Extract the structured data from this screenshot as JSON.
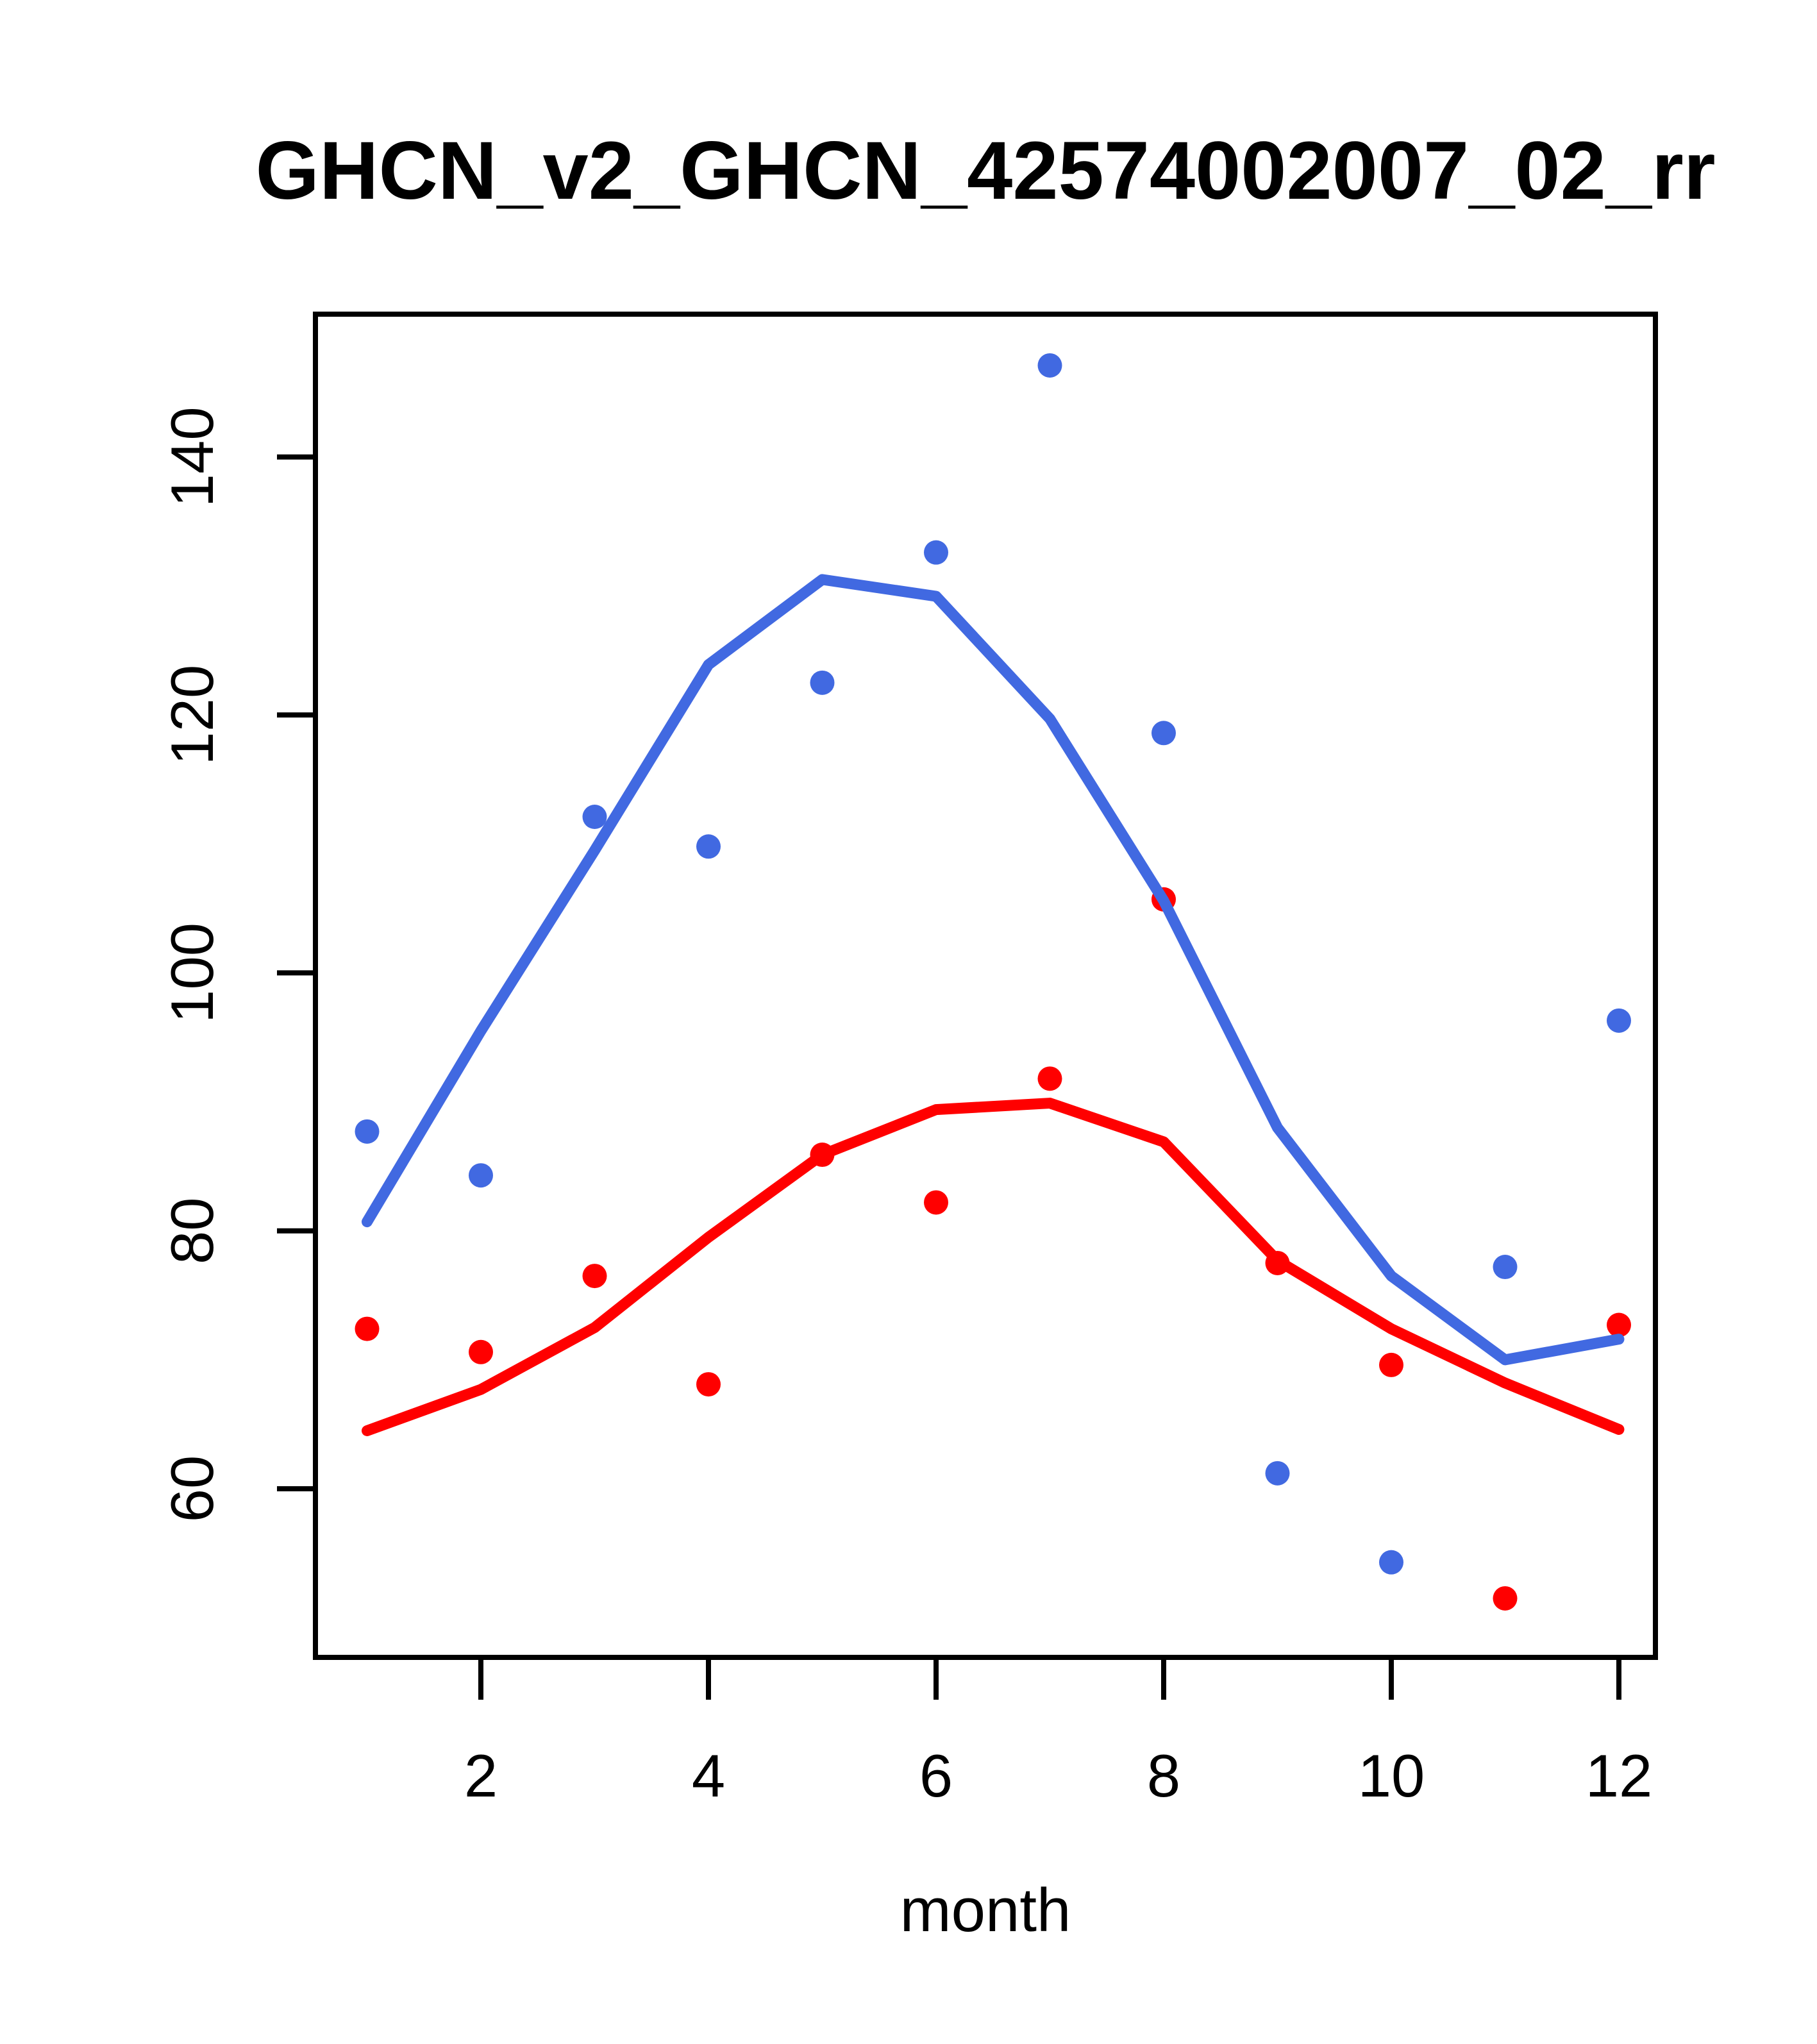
{
  "chart_data": {
    "type": "scatter",
    "title": "GHCN_v2_GHCN_42574002007_02_rr",
    "xlabel": "month",
    "ylabel": "",
    "x": [
      1,
      2,
      3,
      4,
      5,
      6,
      7,
      8,
      9,
      10,
      11,
      12
    ],
    "xticks": [
      2,
      4,
      6,
      8,
      10,
      12
    ],
    "yticks": [
      60,
      80,
      100,
      120,
      140
    ],
    "xlim": [
      0.56,
      12.44
    ],
    "ylim": [
      48.8,
      150.3
    ],
    "grid": false,
    "legend_position": "none",
    "colors": {
      "blue_series": "#4169E1",
      "red_series": "#FF0000",
      "axis": "#000000",
      "background": "#FFFFFF"
    },
    "series": [
      {
        "name": "blue-points",
        "kind": "points",
        "color": "#4169E1",
        "values": [
          87.7,
          84.3,
          112.1,
          109.8,
          122.5,
          132.6,
          147.1,
          118.6,
          61.2,
          54.3,
          77.2,
          96.3
        ]
      },
      {
        "name": "red-points",
        "kind": "points",
        "color": "#FF0000",
        "values": [
          72.4,
          70.6,
          76.5,
          68.1,
          85.9,
          82.2,
          91.8,
          105.7,
          77.5,
          69.6,
          51.5,
          72.7
        ]
      },
      {
        "name": "blue-smooth-line",
        "kind": "line",
        "color": "#4169E1",
        "values": [
          80.7,
          95.5,
          109.5,
          123.9,
          130.5,
          129.2,
          119.7,
          105.6,
          88.0,
          76.5,
          70.0,
          71.6
        ]
      },
      {
        "name": "red-smooth-line",
        "kind": "line",
        "color": "#FF0000",
        "values": [
          64.5,
          67.7,
          72.5,
          79.5,
          85.9,
          89.4,
          89.9,
          86.9,
          77.7,
          72.4,
          68.2,
          64.6
        ]
      }
    ]
  }
}
